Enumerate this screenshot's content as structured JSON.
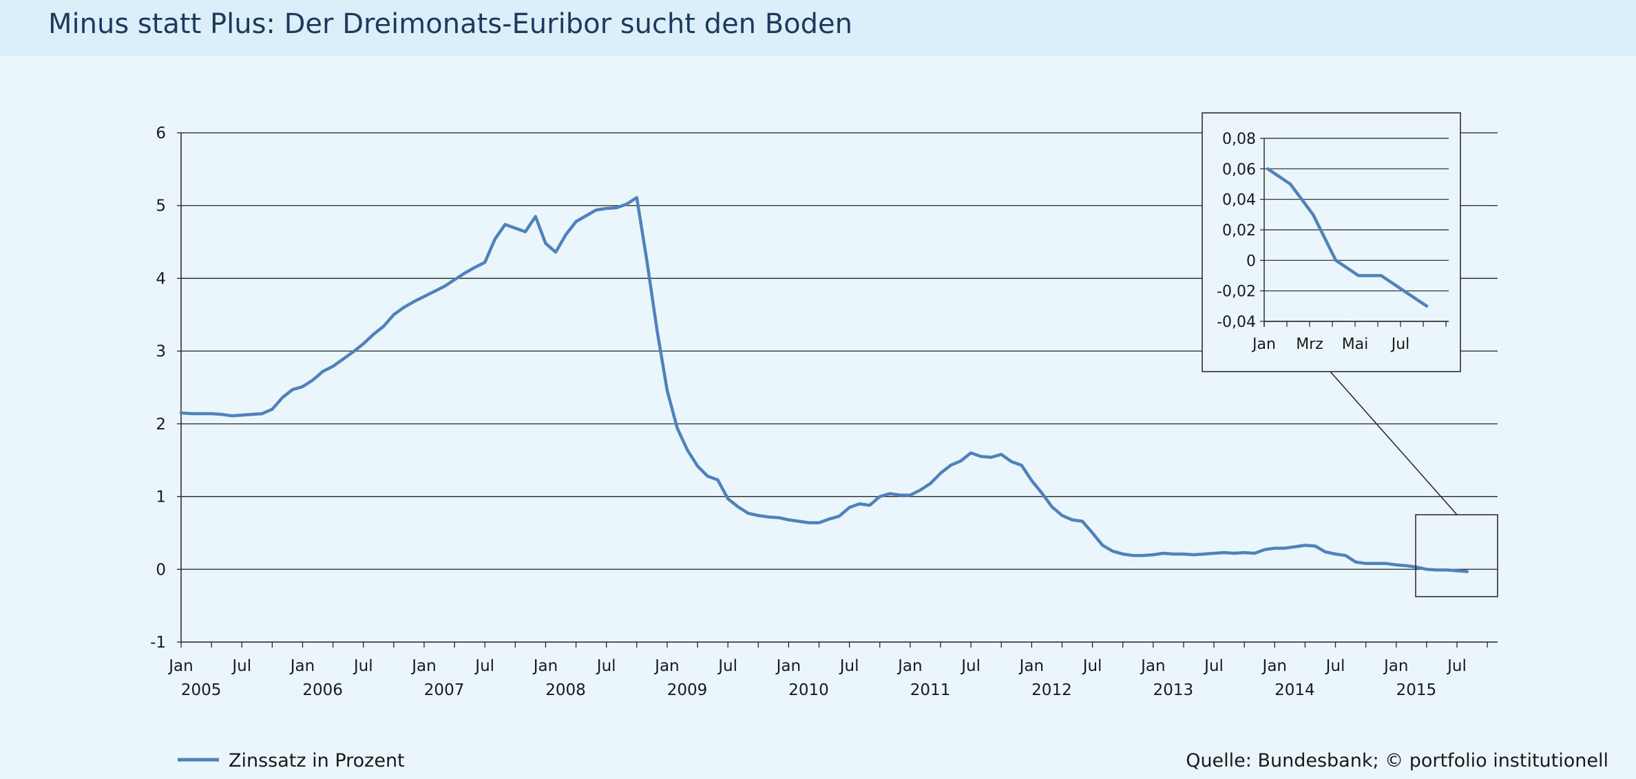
{
  "title": "Minus statt Plus: Der Dreimonats-Euribor sucht den Boden",
  "source": "Quelle: Bundesbank; © portfolio institutionell",
  "colors": {
    "line": "#4f81bd",
    "background": "#eaf5fc",
    "title_bar": "#daeffa",
    "title_text": "#1d3a5c"
  },
  "chart_data": {
    "type": "line",
    "xlabel": "",
    "ylabel": "",
    "ylim": [
      -1,
      6
    ],
    "yticks": [
      "6",
      "5",
      "4",
      "3",
      "2",
      "1",
      "0",
      "-1"
    ],
    "month_labels": [
      "Jan",
      "Jul"
    ],
    "years": [
      "2005",
      "2006",
      "2007",
      "2008",
      "2009",
      "2010",
      "2011",
      "2012",
      "2013",
      "2014",
      "2015"
    ],
    "grid": true,
    "legend_position": "bottom-left",
    "series": [
      {
        "name": "Zinssatz in Prozent",
        "x": [
          "2005-01",
          "2005-02",
          "2005-03",
          "2005-04",
          "2005-05",
          "2005-06",
          "2005-07",
          "2005-08",
          "2005-09",
          "2005-10",
          "2005-11",
          "2005-12",
          "2006-01",
          "2006-02",
          "2006-03",
          "2006-04",
          "2006-05",
          "2006-06",
          "2006-07",
          "2006-08",
          "2006-09",
          "2006-10",
          "2006-11",
          "2006-12",
          "2007-01",
          "2007-02",
          "2007-03",
          "2007-04",
          "2007-05",
          "2007-06",
          "2007-07",
          "2007-08",
          "2007-09",
          "2007-10",
          "2007-11",
          "2007-12",
          "2008-01",
          "2008-02",
          "2008-03",
          "2008-04",
          "2008-05",
          "2008-06",
          "2008-07",
          "2008-08",
          "2008-09",
          "2008-10",
          "2008-11",
          "2008-12",
          "2009-01",
          "2009-02",
          "2009-03",
          "2009-04",
          "2009-05",
          "2009-06",
          "2009-07",
          "2009-08",
          "2009-09",
          "2009-10",
          "2009-11",
          "2009-12",
          "2010-01",
          "2010-02",
          "2010-03",
          "2010-04",
          "2010-05",
          "2010-06",
          "2010-07",
          "2010-08",
          "2010-09",
          "2010-10",
          "2010-11",
          "2010-12",
          "2011-01",
          "2011-02",
          "2011-03",
          "2011-04",
          "2011-05",
          "2011-06",
          "2011-07",
          "2011-08",
          "2011-09",
          "2011-10",
          "2011-11",
          "2011-12",
          "2012-01",
          "2012-02",
          "2012-03",
          "2012-04",
          "2012-05",
          "2012-06",
          "2012-07",
          "2012-08",
          "2012-09",
          "2012-10",
          "2012-11",
          "2012-12",
          "2013-01",
          "2013-02",
          "2013-03",
          "2013-04",
          "2013-05",
          "2013-06",
          "2013-07",
          "2013-08",
          "2013-09",
          "2013-10",
          "2013-11",
          "2013-12",
          "2014-01",
          "2014-02",
          "2014-03",
          "2014-04",
          "2014-05",
          "2014-06",
          "2014-07",
          "2014-08",
          "2014-09",
          "2014-10",
          "2014-11",
          "2014-12",
          "2015-01",
          "2015-02",
          "2015-03",
          "2015-04",
          "2015-05",
          "2015-06",
          "2015-07",
          "2015-08"
        ],
        "values": [
          2.15,
          2.14,
          2.14,
          2.14,
          2.13,
          2.11,
          2.12,
          2.13,
          2.14,
          2.2,
          2.36,
          2.47,
          2.51,
          2.6,
          2.72,
          2.79,
          2.89,
          2.99,
          3.1,
          3.23,
          3.34,
          3.5,
          3.6,
          3.68,
          3.75,
          3.82,
          3.89,
          3.98,
          4.07,
          4.15,
          4.22,
          4.54,
          4.74,
          4.69,
          4.64,
          4.85,
          4.48,
          4.36,
          4.6,
          4.78,
          4.86,
          4.94,
          4.96,
          4.97,
          5.02,
          5.11,
          4.24,
          3.29,
          2.46,
          1.94,
          1.64,
          1.42,
          1.28,
          1.23,
          0.97,
          0.86,
          0.77,
          0.74,
          0.72,
          0.71,
          0.68,
          0.66,
          0.64,
          0.64,
          0.69,
          0.73,
          0.85,
          0.9,
          0.88,
          1.0,
          1.04,
          1.02,
          1.02,
          1.09,
          1.18,
          1.32,
          1.43,
          1.49,
          1.6,
          1.55,
          1.54,
          1.58,
          1.48,
          1.43,
          1.22,
          1.05,
          0.86,
          0.74,
          0.68,
          0.66,
          0.5,
          0.33,
          0.25,
          0.21,
          0.19,
          0.19,
          0.2,
          0.22,
          0.21,
          0.21,
          0.2,
          0.21,
          0.22,
          0.23,
          0.22,
          0.23,
          0.22,
          0.27,
          0.29,
          0.29,
          0.31,
          0.33,
          0.32,
          0.24,
          0.21,
          0.19,
          0.1,
          0.08,
          0.08,
          0.08,
          0.06,
          0.05,
          0.03,
          0.0,
          -0.01,
          -0.01,
          -0.02,
          -0.03
        ]
      }
    ],
    "inset": {
      "type": "line",
      "ylim": [
        -0.04,
        0.08
      ],
      "yticks": [
        "0,08",
        "0,06",
        "0,04",
        "0,02",
        "0",
        "-0,02",
        "-0,04"
      ],
      "month_labels": [
        "Jan",
        "Mrz",
        "Mai",
        "Jul"
      ],
      "x": [
        "2015-01",
        "2015-02",
        "2015-03",
        "2015-04",
        "2015-05",
        "2015-06",
        "2015-07",
        "2015-08"
      ],
      "values": [
        0.06,
        0.05,
        0.03,
        0.0,
        -0.01,
        -0.01,
        -0.02,
        -0.03
      ]
    }
  }
}
